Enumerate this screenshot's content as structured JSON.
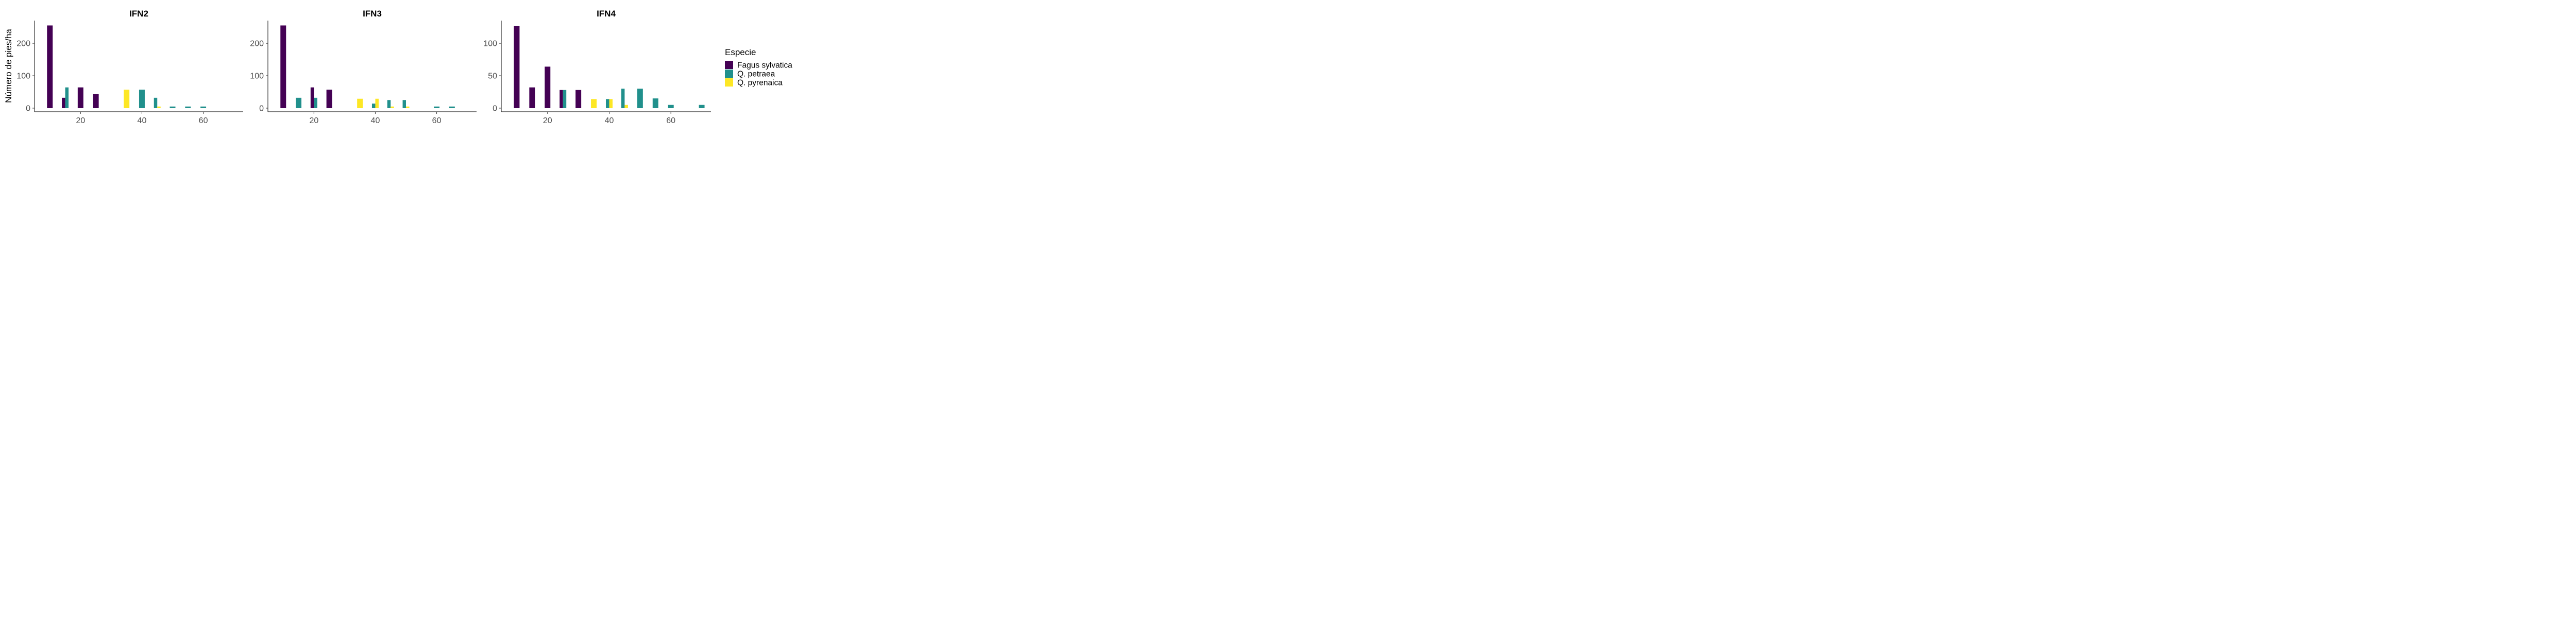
{
  "figure": {
    "ylabel": "Número de pies/ha",
    "legend": {
      "title": "Especie",
      "placement": "right",
      "entries": [
        {
          "name": "Fagus sylvatica",
          "color": "#440154"
        },
        {
          "name": "Q. petraea",
          "color": "#21908C"
        },
        {
          "name": "Q. pyrenaica",
          "color": "#FDE725"
        }
      ]
    }
  },
  "chart_data": [
    {
      "type": "bar",
      "title": "IFN2",
      "xlim": [
        5,
        73
      ],
      "ylim": [
        0,
        270
      ],
      "xticks": [
        20,
        40,
        60
      ],
      "yticks": [
        0,
        100,
        200
      ],
      "grid": false,
      "series": [
        {
          "name": "Fagus sylvatica",
          "color": "#440154",
          "x": [
            10,
            15,
            20,
            25
          ],
          "values": [
            255,
            32,
            64,
            43
          ]
        },
        {
          "name": "Q. petraea",
          "color": "#21908C",
          "x": [
            15,
            40,
            45,
            50,
            55,
            60
          ],
          "values": [
            64,
            57,
            32,
            5,
            5,
            5
          ]
        },
        {
          "name": "Q. pyrenaica",
          "color": "#FDE725",
          "x": [
            35,
            45
          ],
          "values": [
            57,
            5
          ]
        }
      ]
    },
    {
      "type": "bar",
      "title": "IFN3",
      "xlim": [
        5,
        73
      ],
      "ylim": [
        0,
        270
      ],
      "xticks": [
        20,
        40,
        60
      ],
      "yticks": [
        0,
        100,
        200
      ],
      "grid": false,
      "series": [
        {
          "name": "Fagus sylvatica",
          "color": "#440154",
          "x": [
            10,
            20,
            25
          ],
          "values": [
            255,
            64,
            57
          ]
        },
        {
          "name": "Q. petraea",
          "color": "#21908C",
          "x": [
            15,
            20,
            40,
            45,
            50,
            60,
            65
          ],
          "values": [
            32,
            32,
            14,
            25,
            25,
            5,
            5
          ]
        },
        {
          "name": "Q. pyrenaica",
          "color": "#FDE725",
          "x": [
            35,
            40,
            45,
            50
          ],
          "values": [
            29,
            29,
            5,
            5
          ]
        }
      ]
    },
    {
      "type": "bar",
      "title": "IFN4",
      "xlim": [
        5,
        73
      ],
      "ylim": [
        0,
        135
      ],
      "xticks": [
        20,
        40,
        60
      ],
      "yticks": [
        0,
        50,
        100
      ],
      "grid": false,
      "series": [
        {
          "name": "Fagus sylvatica",
          "color": "#440154",
          "x": [
            10,
            15,
            20,
            25,
            30
          ],
          "values": [
            127,
            32,
            64,
            28,
            28
          ]
        },
        {
          "name": "Q. petraea",
          "color": "#21908C",
          "x": [
            25,
            40,
            45,
            50,
            55,
            60,
            70
          ],
          "values": [
            28,
            14,
            30,
            30,
            15,
            5,
            5
          ]
        },
        {
          "name": "Q. pyrenaica",
          "color": "#FDE725",
          "x": [
            35,
            40,
            45
          ],
          "values": [
            14,
            14,
            5
          ]
        }
      ]
    }
  ]
}
